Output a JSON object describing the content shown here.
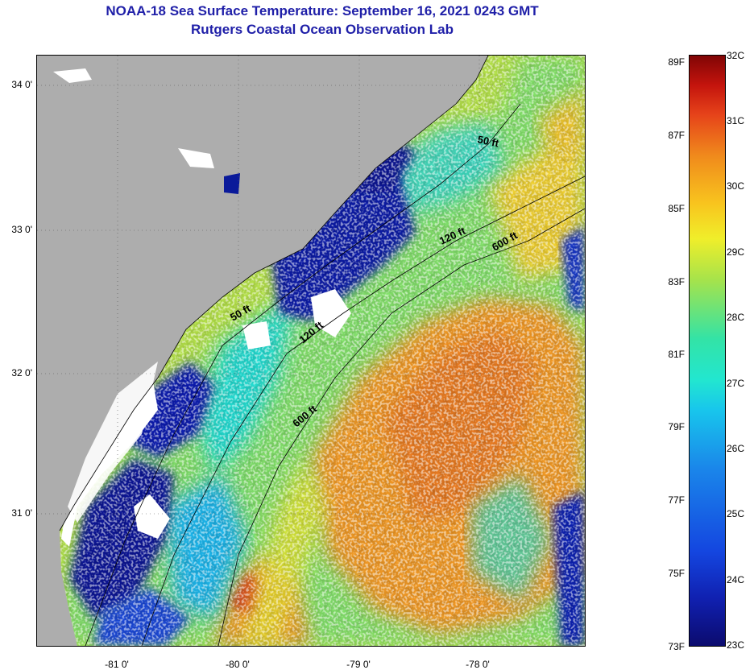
{
  "title": {
    "line1": "NOAA-18 Sea Surface Temperature:  September 16, 2021 0243 GMT",
    "line2": "Rutgers Coastal Ocean Observation Lab"
  },
  "map": {
    "lat_labels": [
      "34 0'",
      "33 0'",
      "32 0'",
      "31 0'"
    ],
    "lon_labels": [
      "-81 0'",
      "-80 0'",
      "-79 0'",
      "-78 0'"
    ],
    "isobath_labels": [
      "50 ft",
      "50 ft",
      "120 ft",
      "120 ft",
      "600 ft",
      "600 ft"
    ],
    "colors": {
      "land": "#adadad",
      "cloud": "#ffffff",
      "isobath": "#000000"
    }
  },
  "colorbar": {
    "fahrenheit": [
      "89F",
      "87F",
      "85F",
      "83F",
      "81F",
      "79F",
      "77F",
      "75F",
      "73F"
    ],
    "celsius": [
      "32C",
      "31C",
      "30C",
      "29C",
      "28C",
      "27C",
      "26C",
      "25C",
      "24C",
      "23C"
    ]
  }
}
